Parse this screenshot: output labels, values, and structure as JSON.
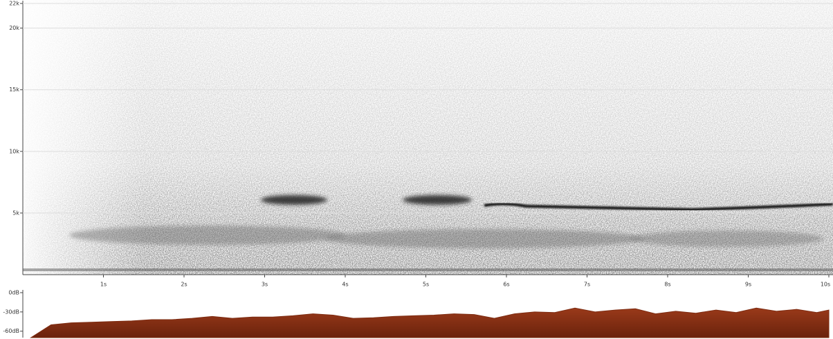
{
  "chart_data": [
    {
      "type": "spectrogram",
      "xlim": [
        0,
        10
      ],
      "xticks": [
        {
          "value": 1,
          "label": "1s"
        },
        {
          "value": 2,
          "label": "2s"
        },
        {
          "value": 3,
          "label": "3s"
        },
        {
          "value": 4,
          "label": "4s"
        },
        {
          "value": 5,
          "label": "5s"
        },
        {
          "value": 6,
          "label": "6s"
        },
        {
          "value": 7,
          "label": "7s"
        },
        {
          "value": 8,
          "label": "8s"
        },
        {
          "value": 9,
          "label": "9s"
        },
        {
          "value": 10,
          "label": "10s"
        }
      ],
      "ylim": [
        0,
        22000
      ],
      "yticks": [
        {
          "value": 5000,
          "label": "5k"
        },
        {
          "value": 10000,
          "label": "10k"
        },
        {
          "value": 15000,
          "label": "15k"
        },
        {
          "value": 20000,
          "label": "20k"
        },
        {
          "value": 22000,
          "label": "22k"
        }
      ],
      "grid": true
    },
    {
      "type": "area",
      "color": "#7e2c12",
      "xlim": [
        0,
        10
      ],
      "ylim": [
        -70,
        0
      ],
      "yticks": [
        {
          "value": 0,
          "label": "0dB"
        },
        {
          "value": -30,
          "label": "-30dB"
        },
        {
          "value": -60,
          "label": "-60dB"
        }
      ],
      "x": [
        0.1,
        0.35,
        0.6,
        0.85,
        1.1,
        1.35,
        1.6,
        1.85,
        2.1,
        2.35,
        2.6,
        2.85,
        3.1,
        3.35,
        3.6,
        3.85,
        4.1,
        4.35,
        4.6,
        4.85,
        5.1,
        5.35,
        5.6,
        5.85,
        6.1,
        6.35,
        6.6,
        6.85,
        7.1,
        7.35,
        7.6,
        7.85,
        8.1,
        8.35,
        8.6,
        8.85,
        9.1,
        9.35,
        9.6,
        9.85,
        10
      ],
      "values": [
        -70,
        -50,
        -47,
        -46,
        -45,
        -44,
        -42,
        -42,
        -40,
        -37,
        -40,
        -38,
        -38,
        -36,
        -33,
        -35,
        -40,
        -39,
        -37,
        -36,
        -35,
        -33,
        -34,
        -40,
        -33,
        -30,
        -31,
        -24,
        -30,
        -27,
        -25,
        -33,
        -29,
        -32,
        -27,
        -31,
        -24,
        -29,
        -26,
        -31,
        -27
      ]
    }
  ]
}
